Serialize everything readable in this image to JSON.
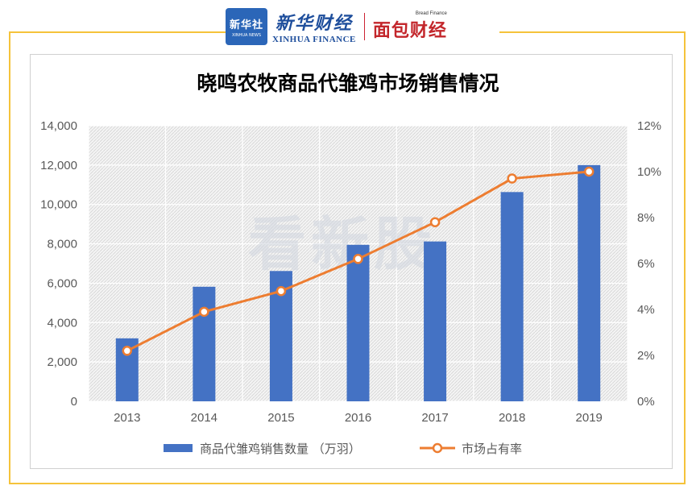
{
  "header": {
    "xinhua_badge_cn": "新华社",
    "xinhua_badge_en": "XINHUA NEWS",
    "xinhua_finance_cn": "新华财经",
    "xinhua_finance_en": "XINHUA FINANCE",
    "bread_finance_en": "Bread Finance",
    "bread_finance_cn": "面包财经"
  },
  "watermark": "看新股",
  "colors": {
    "bar": "#4472c4",
    "line": "#ed7d31",
    "frame": "#f5c33b"
  },
  "chart_data": {
    "type": "bar",
    "title": "晓鸣农牧商品代雏鸡市场销售情况",
    "categories": [
      "2013",
      "2014",
      "2015",
      "2016",
      "2017",
      "2018",
      "2019"
    ],
    "series": [
      {
        "name": "商品代雏鸡销售数量 （万羽）",
        "type": "bar",
        "axis": "left",
        "values": [
          3200,
          5820,
          6620,
          7950,
          8120,
          10630,
          12000
        ]
      },
      {
        "name": "市场占有率",
        "type": "line",
        "axis": "right",
        "values": [
          2.2,
          3.9,
          4.8,
          6.2,
          7.8,
          9.7,
          10.0
        ]
      }
    ],
    "y_left": {
      "min": 0,
      "max": 14000,
      "step": 2000,
      "tick_labels": [
        "0",
        "2,000",
        "4,000",
        "6,000",
        "8,000",
        "10,000",
        "12,000",
        "14,000"
      ]
    },
    "y_right": {
      "min": 0,
      "max": 12,
      "step": 2,
      "tick_labels": [
        "0%",
        "2%",
        "4%",
        "6%",
        "8%",
        "10%",
        "12%"
      ]
    },
    "grid": true,
    "legend": "bottom"
  }
}
